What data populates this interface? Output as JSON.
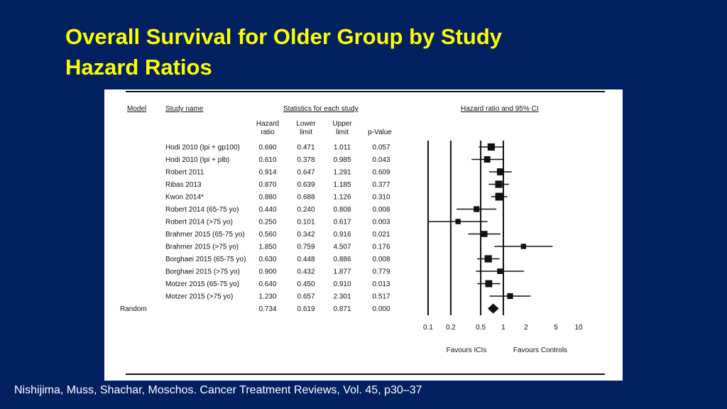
{
  "slide": {
    "title_line1": "Overall Survival for Older Group by Study",
    "title_line2": "Hazard Ratios",
    "citation": "Nishijima, Muss, Shachar, Moschos.  Cancer Treatment Reviews, Vol. 45, p30–37"
  },
  "colors": {
    "background": "#002060",
    "title": "#ffff00",
    "text": "#ffffff"
  },
  "chart_data": {
    "type": "forest",
    "headers": {
      "model": "Model",
      "study_name": "Study name",
      "stats_group": "Statistics for each study",
      "plot_title": "Hazard ratio and 95% CI",
      "hr_1": "Hazard",
      "hr_2": "ratio",
      "lower_1": "Lower",
      "lower_2": "limit",
      "upper_1": "Upper",
      "upper_2": "limit",
      "pvalue": "p-Value"
    },
    "rows": [
      {
        "study": "Hodi 2010 (Ipi + gp100)",
        "hr": "0.690",
        "lower": "0.471",
        "upper": "1.011",
        "p": "0.057",
        "weight": 1.3
      },
      {
        "study": "Hodi 2010 (Ipi + plb)",
        "hr": "0.610",
        "lower": "0.378",
        "upper": "0.985",
        "p": "0.043",
        "weight": 1.0
      },
      {
        "study": "Robert 2011",
        "hr": "0.914",
        "lower": "0.647",
        "upper": "1.291",
        "p": "0.609",
        "weight": 1.2
      },
      {
        "study": "Ribas 2013",
        "hr": "0.870",
        "lower": "0.639",
        "upper": "1.185",
        "p": "0.377",
        "weight": 1.3
      },
      {
        "study": "Kwon 2014*",
        "hr": "0.880",
        "lower": "0.688",
        "upper": "1.126",
        "p": "0.310",
        "weight": 1.5
      },
      {
        "study": "Robert 2014 (65-75 yo)",
        "hr": "0.440",
        "lower": "0.240",
        "upper": "0.808",
        "p": "0.008",
        "weight": 0.8
      },
      {
        "study": "Robert 2014 (>75 yo)",
        "hr": "0.250",
        "lower": "0.101",
        "upper": "0.617",
        "p": "0.003",
        "weight": 0.6
      },
      {
        "study": "Brahmer 2015 (65-75 yo)",
        "hr": "0.560",
        "lower": "0.342",
        "upper": "0.916",
        "p": "0.021",
        "weight": 0.9
      },
      {
        "study": "Brahmer 2015 (>75 yo)",
        "hr": "1.850",
        "lower": "0.759",
        "upper": "4.507",
        "p": "0.176",
        "weight": 0.6
      },
      {
        "study": "Borghaei 2015 (65-75 yo)",
        "hr": "0.630",
        "lower": "0.448",
        "upper": "0.886",
        "p": "0.008",
        "weight": 1.3
      },
      {
        "study": "Borghaei 2015  (>75 yo)",
        "hr": "0.900",
        "lower": "0.432",
        "upper": "1.877",
        "p": "0.779",
        "weight": 0.7
      },
      {
        "study": "Motzer 2015 (65-75 yo)",
        "hr": "0.640",
        "lower": "0.450",
        "upper": "0.910",
        "p": "0.013",
        "weight": 1.2
      },
      {
        "study": "Motzer 2015  (>75 yo)",
        "hr": "1.230",
        "lower": "0.657",
        "upper": "2.301",
        "p": "0.517",
        "weight": 0.8
      }
    ],
    "summary": {
      "model": "Random",
      "hr": "0.734",
      "lower": "0.619",
      "upper": "0.871",
      "p": "0.000"
    },
    "x_scale": "log",
    "xlim": [
      0.1,
      10
    ],
    "x_ticks": [
      0.1,
      0.2,
      0.5,
      1,
      2,
      5,
      10
    ],
    "x_tick_labels": [
      "0.1",
      "0.2",
      "0.5",
      "1",
      "2",
      "5",
      "10"
    ],
    "reference_lines": [
      0.1,
      0.2,
      0.5,
      1
    ],
    "favours_left": "Favours ICIs",
    "favours_right": "Favours Controls"
  }
}
